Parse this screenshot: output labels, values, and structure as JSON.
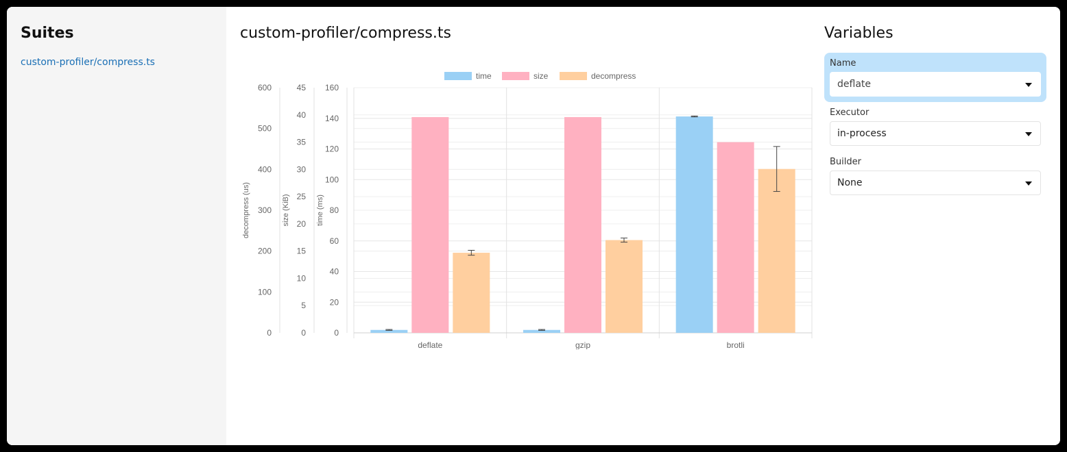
{
  "sidebar": {
    "title": "Suites",
    "items": [
      {
        "label": "custom-profiler/compress.ts"
      }
    ]
  },
  "main": {
    "title": "custom-profiler/compress.ts"
  },
  "variables": {
    "title": "Variables",
    "fields": [
      {
        "label": "Name",
        "value": "deflate",
        "active": true
      },
      {
        "label": "Executor",
        "value": "in-process",
        "active": false
      },
      {
        "label": "Builder",
        "value": "None",
        "active": false
      }
    ]
  },
  "chart_data": {
    "type": "bar",
    "categories": [
      "deflate",
      "gzip",
      "brotli"
    ],
    "legend_position": "top",
    "grid": true,
    "series": [
      {
        "name": "time",
        "axis": "time (ms)",
        "color": "#9ad0f5",
        "values": [
          1.9,
          1.9,
          141.2
        ],
        "error": [
          0.3,
          0.3,
          0.3
        ]
      },
      {
        "name": "size",
        "axis": "size (KiB)",
        "color": "#ffb1c1",
        "values": [
          39.6,
          39.6,
          35.0
        ],
        "error": [
          0,
          0,
          0
        ]
      },
      {
        "name": "decompress",
        "axis": "decompress (us)",
        "color": "#ffcf9f",
        "values": [
          196,
          227,
          401
        ],
        "error": [
          6,
          5,
          55
        ]
      }
    ],
    "axes": [
      {
        "label": "decompress (us)",
        "min": 0,
        "max": 600,
        "ticks": [
          0,
          100,
          200,
          300,
          400,
          500,
          600
        ]
      },
      {
        "label": "size (KiB)",
        "min": 0,
        "max": 45,
        "ticks": [
          0,
          5,
          10,
          15,
          20,
          25,
          30,
          35,
          40,
          45
        ]
      },
      {
        "label": "time (ms)",
        "min": 0,
        "max": 160,
        "ticks": [
          0,
          20,
          40,
          60,
          80,
          100,
          120,
          140,
          160
        ]
      }
    ]
  }
}
